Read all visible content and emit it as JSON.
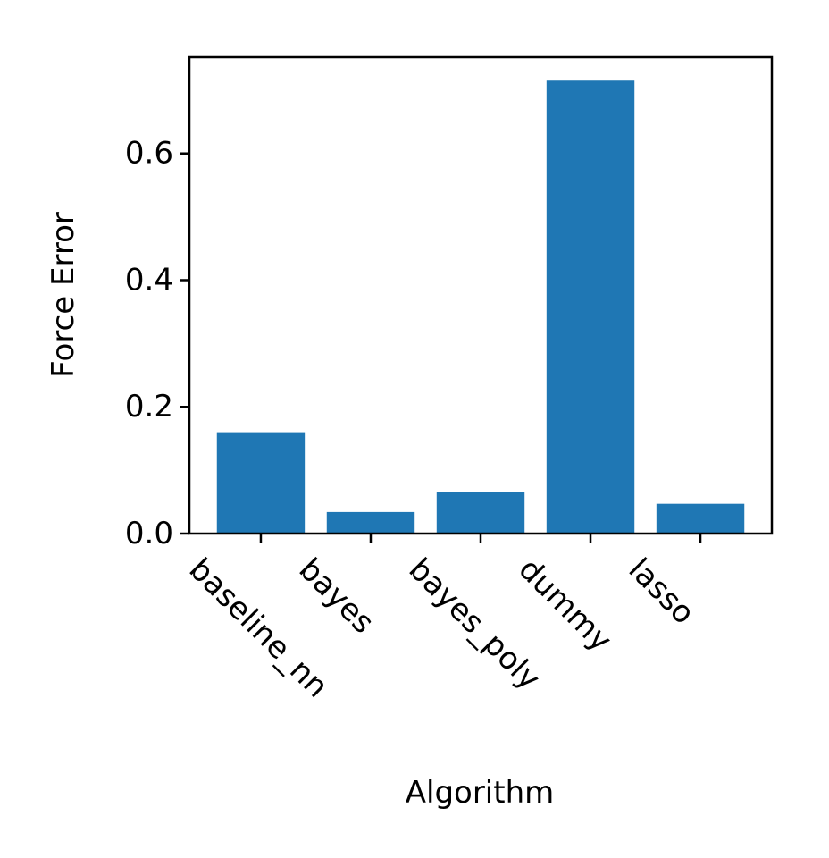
{
  "chart_data": {
    "type": "bar",
    "title": "",
    "xlabel": "Algorithm",
    "ylabel": "Force Error",
    "categories": [
      "baseline_nn",
      "bayes",
      "bayes_poly",
      "dummy",
      "lasso"
    ],
    "values": [
      0.16,
      0.034,
      0.065,
      0.715,
      0.047
    ],
    "ylim": [
      0,
      0.752
    ],
    "yticks": [
      0.0,
      0.2,
      0.4,
      0.6
    ],
    "ytick_labels": [
      "0.0",
      "0.2",
      "0.4",
      "0.6"
    ],
    "bar_color": "#1f77b4",
    "grid": false,
    "legend": "none"
  }
}
